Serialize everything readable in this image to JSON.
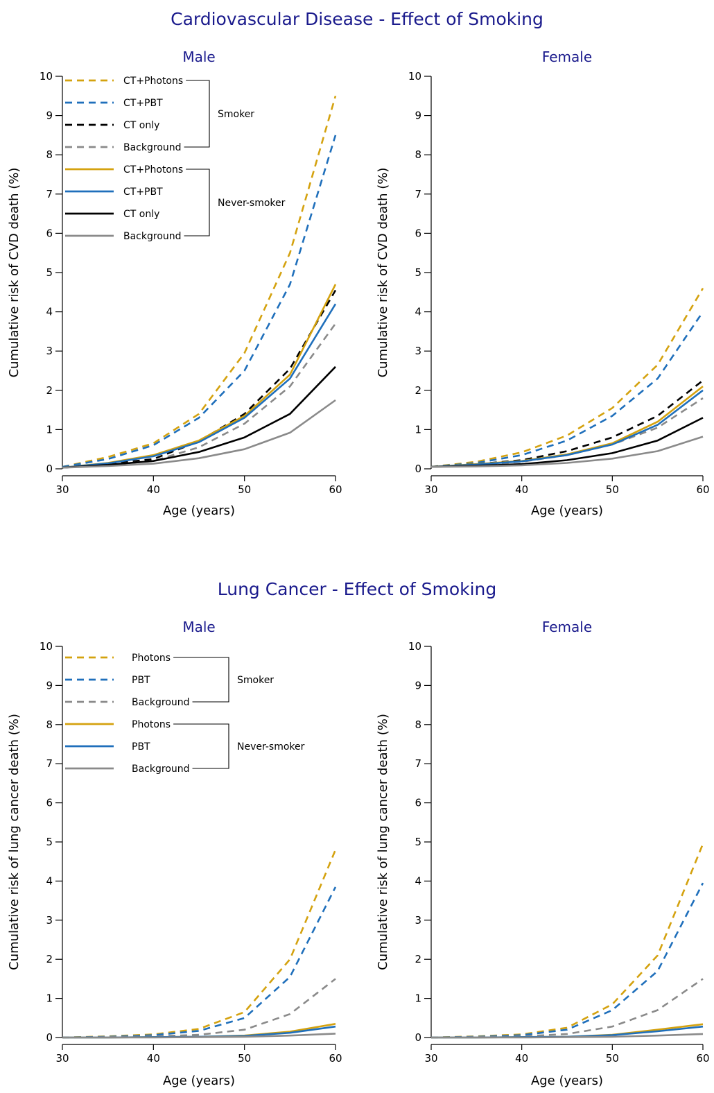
{
  "colors": {
    "photons": "#d4a20f",
    "pbt": "#1f6fbb",
    "ct_only": "#000000",
    "background": "#8a8a8a",
    "title": "#1a1a8c"
  },
  "sections": [
    {
      "title": "Cardiovascular Disease - Effect of Smoking"
    },
    {
      "title": "Lung Cancer - Effect of Smoking"
    }
  ],
  "legends": {
    "cvd": {
      "groups": [
        {
          "name": "Smoker",
          "items": [
            {
              "label": "CT+Photons",
              "color": "photons",
              "dash": true
            },
            {
              "label": "CT+PBT",
              "color": "pbt",
              "dash": true
            },
            {
              "label": "CT only",
              "color": "ct_only",
              "dash": true
            },
            {
              "label": "Background",
              "color": "background",
              "dash": true
            }
          ]
        },
        {
          "name": "Never-smoker",
          "items": [
            {
              "label": "CT+Photons",
              "color": "photons",
              "dash": false
            },
            {
              "label": "CT+PBT",
              "color": "pbt",
              "dash": false
            },
            {
              "label": "CT only",
              "color": "ct_only",
              "dash": false
            },
            {
              "label": "Background",
              "color": "background",
              "dash": false
            }
          ]
        }
      ]
    },
    "lung": {
      "groups": [
        {
          "name": "Smoker",
          "items": [
            {
              "label": "Photons",
              "color": "photons",
              "dash": true
            },
            {
              "label": "PBT",
              "color": "pbt",
              "dash": true
            },
            {
              "label": "Background",
              "color": "background",
              "dash": true
            }
          ]
        },
        {
          "name": "Never-smoker",
          "items": [
            {
              "label": "Photons",
              "color": "photons",
              "dash": false
            },
            {
              "label": "PBT",
              "color": "pbt",
              "dash": false
            },
            {
              "label": "Background",
              "color": "background",
              "dash": false
            }
          ]
        }
      ]
    }
  },
  "chart_data": [
    {
      "type": "line",
      "title": "Male",
      "section": 0,
      "legend": "cvd",
      "legend_placement": "top-left",
      "xlabel": "Age (years)",
      "ylabel": "Cumulative risk of CVD death (%)",
      "xlim": [
        30,
        60
      ],
      "ylim": [
        0,
        10
      ],
      "xticks": [
        30,
        40,
        50,
        60
      ],
      "yticks": [
        0,
        1,
        2,
        3,
        4,
        5,
        6,
        7,
        8,
        9,
        10
      ],
      "grid": false,
      "series": [
        {
          "legend_group": "Smoker",
          "legend_item": "CT+Photons",
          "color": "photons",
          "dash": true,
          "x": [
            30,
            35,
            40,
            45,
            50,
            55,
            60
          ],
          "y": [
            0.05,
            0.3,
            0.65,
            1.4,
            2.95,
            5.5,
            9.5
          ]
        },
        {
          "legend_group": "Smoker",
          "legend_item": "CT+PBT",
          "color": "pbt",
          "dash": true,
          "x": [
            30,
            35,
            40,
            45,
            50,
            55,
            60
          ],
          "y": [
            0.05,
            0.25,
            0.6,
            1.3,
            2.5,
            4.7,
            8.5
          ]
        },
        {
          "legend_group": "Smoker",
          "legend_item": "CT only",
          "color": "ct_only",
          "dash": true,
          "x": [
            30,
            35,
            40,
            45,
            50,
            55,
            60
          ],
          "y": [
            0.03,
            0.12,
            0.25,
            0.7,
            1.4,
            2.55,
            4.55
          ]
        },
        {
          "legend_group": "Smoker",
          "legend_item": "Background",
          "color": "background",
          "dash": true,
          "x": [
            30,
            35,
            40,
            45,
            50,
            55,
            60
          ],
          "y": [
            0.03,
            0.1,
            0.2,
            0.55,
            1.15,
            2.1,
            3.7
          ]
        },
        {
          "legend_group": "Never-smoker",
          "legend_item": "CT+Photons",
          "color": "photons",
          "dash": false,
          "x": [
            30,
            35,
            40,
            45,
            50,
            55,
            60
          ],
          "y": [
            0.03,
            0.15,
            0.35,
            0.72,
            1.35,
            2.4,
            4.7
          ]
        },
        {
          "legend_group": "Never-smoker",
          "legend_item": "CT+PBT",
          "color": "pbt",
          "dash": false,
          "x": [
            30,
            35,
            40,
            45,
            50,
            55,
            60
          ],
          "y": [
            0.03,
            0.14,
            0.32,
            0.68,
            1.3,
            2.3,
            4.2
          ]
        },
        {
          "legend_group": "Never-smoker",
          "legend_item": "CT only",
          "color": "ct_only",
          "dash": false,
          "x": [
            30,
            35,
            40,
            45,
            50,
            55,
            60
          ],
          "y": [
            0.03,
            0.1,
            0.2,
            0.43,
            0.8,
            1.4,
            2.6
          ]
        },
        {
          "legend_group": "Never-smoker",
          "legend_item": "Background",
          "color": "background",
          "dash": false,
          "x": [
            30,
            35,
            40,
            45,
            50,
            55,
            60
          ],
          "y": [
            0.03,
            0.07,
            0.13,
            0.27,
            0.5,
            0.92,
            1.75
          ]
        }
      ]
    },
    {
      "type": "line",
      "title": "Female",
      "section": 0,
      "legend": null,
      "xlabel": "Age (years)",
      "ylabel": "Cumulative risk of CVD death (%)",
      "xlim": [
        30,
        60
      ],
      "ylim": [
        0,
        10
      ],
      "xticks": [
        30,
        40,
        50,
        60
      ],
      "yticks": [
        0,
        1,
        2,
        3,
        4,
        5,
        6,
        7,
        8,
        9,
        10
      ],
      "grid": false,
      "series": [
        {
          "legend_group": "Smoker",
          "legend_item": "CT+Photons",
          "color": "photons",
          "dash": true,
          "x": [
            30,
            35,
            40,
            45,
            50,
            55,
            60
          ],
          "y": [
            0.05,
            0.18,
            0.42,
            0.85,
            1.55,
            2.65,
            4.6
          ]
        },
        {
          "legend_group": "Smoker",
          "legend_item": "CT+PBT",
          "color": "pbt",
          "dash": true,
          "x": [
            30,
            35,
            40,
            45,
            50,
            55,
            60
          ],
          "y": [
            0.05,
            0.15,
            0.35,
            0.72,
            1.35,
            2.3,
            4.0
          ]
        },
        {
          "legend_group": "Smoker",
          "legend_item": "CT only",
          "color": "ct_only",
          "dash": true,
          "x": [
            30,
            35,
            40,
            45,
            50,
            55,
            60
          ],
          "y": [
            0.05,
            0.12,
            0.22,
            0.45,
            0.8,
            1.35,
            2.25
          ]
        },
        {
          "legend_group": "Smoker",
          "legend_item": "Background",
          "color": "background",
          "dash": true,
          "x": [
            30,
            35,
            40,
            45,
            50,
            55,
            60
          ],
          "y": [
            0.05,
            0.1,
            0.18,
            0.35,
            0.62,
            1.05,
            1.8
          ]
        },
        {
          "legend_group": "Never-smoker",
          "legend_item": "CT+Photons",
          "color": "photons",
          "dash": false,
          "x": [
            30,
            35,
            40,
            45,
            50,
            55,
            60
          ],
          "y": [
            0.05,
            0.12,
            0.2,
            0.37,
            0.65,
            1.2,
            2.1
          ]
        },
        {
          "legend_group": "Never-smoker",
          "legend_item": "CT+PBT",
          "color": "pbt",
          "dash": false,
          "x": [
            30,
            35,
            40,
            45,
            50,
            55,
            60
          ],
          "y": [
            0.05,
            0.11,
            0.19,
            0.35,
            0.62,
            1.12,
            2.0
          ]
        },
        {
          "legend_group": "Never-smoker",
          "legend_item": "CT only",
          "color": "ct_only",
          "dash": false,
          "x": [
            30,
            35,
            40,
            45,
            50,
            55,
            60
          ],
          "y": [
            0.05,
            0.08,
            0.12,
            0.22,
            0.4,
            0.72,
            1.3
          ]
        },
        {
          "legend_group": "Never-smoker",
          "legend_item": "Background",
          "color": "background",
          "dash": false,
          "x": [
            30,
            35,
            40,
            45,
            50,
            55,
            60
          ],
          "y": [
            0.05,
            0.06,
            0.09,
            0.15,
            0.26,
            0.45,
            0.82
          ]
        }
      ]
    },
    {
      "type": "line",
      "title": "Male",
      "section": 1,
      "legend": "lung",
      "legend_placement": "top-left",
      "xlabel": "Age (years)",
      "ylabel": "Cumulative risk of lung cancer death (%)",
      "xlim": [
        30,
        60
      ],
      "ylim": [
        0,
        10
      ],
      "xticks": [
        30,
        40,
        50,
        60
      ],
      "yticks": [
        0,
        1,
        2,
        3,
        4,
        5,
        6,
        7,
        8,
        9,
        10
      ],
      "grid": false,
      "series": [
        {
          "legend_group": "Smoker",
          "legend_item": "Photons",
          "color": "photons",
          "dash": true,
          "x": [
            30,
            35,
            40,
            45,
            50,
            55,
            60
          ],
          "y": [
            0.0,
            0.03,
            0.08,
            0.22,
            0.65,
            2.0,
            4.8
          ]
        },
        {
          "legend_group": "Smoker",
          "legend_item": "PBT",
          "color": "pbt",
          "dash": true,
          "x": [
            30,
            35,
            40,
            45,
            50,
            55,
            60
          ],
          "y": [
            0.0,
            0.02,
            0.06,
            0.17,
            0.5,
            1.55,
            3.85
          ]
        },
        {
          "legend_group": "Smoker",
          "legend_item": "Background",
          "color": "background",
          "dash": true,
          "x": [
            30,
            35,
            40,
            45,
            50,
            55,
            60
          ],
          "y": [
            0.0,
            0.01,
            0.03,
            0.07,
            0.2,
            0.6,
            1.5
          ]
        },
        {
          "legend_group": "Never-smoker",
          "legend_item": "Photons",
          "color": "photons",
          "dash": false,
          "x": [
            30,
            35,
            40,
            45,
            50,
            55,
            60
          ],
          "y": [
            0.0,
            0.0,
            0.01,
            0.02,
            0.05,
            0.15,
            0.35
          ]
        },
        {
          "legend_group": "Never-smoker",
          "legend_item": "PBT",
          "color": "pbt",
          "dash": false,
          "x": [
            30,
            35,
            40,
            45,
            50,
            55,
            60
          ],
          "y": [
            0.0,
            0.0,
            0.01,
            0.02,
            0.04,
            0.12,
            0.28
          ]
        },
        {
          "legend_group": "Never-smoker",
          "legend_item": "Background",
          "color": "background",
          "dash": false,
          "x": [
            30,
            35,
            40,
            45,
            50,
            55,
            60
          ],
          "y": [
            0.0,
            0.0,
            0.0,
            0.01,
            0.02,
            0.05,
            0.1
          ]
        }
      ]
    },
    {
      "type": "line",
      "title": "Female",
      "section": 1,
      "legend": null,
      "xlabel": "Age (years)",
      "ylabel": "Cumulative risk of lung cancer death (%)",
      "xlim": [
        30,
        60
      ],
      "ylim": [
        0,
        10
      ],
      "xticks": [
        30,
        40,
        50,
        60
      ],
      "yticks": [
        0,
        1,
        2,
        3,
        4,
        5,
        6,
        7,
        8,
        9,
        10
      ],
      "grid": false,
      "series": [
        {
          "legend_group": "Smoker",
          "legend_item": "Photons",
          "color": "photons",
          "dash": true,
          "x": [
            30,
            35,
            40,
            45,
            50,
            55,
            60
          ],
          "y": [
            0.0,
            0.03,
            0.08,
            0.25,
            0.85,
            2.1,
            4.95
          ]
        },
        {
          "legend_group": "Smoker",
          "legend_item": "PBT",
          "color": "pbt",
          "dash": true,
          "x": [
            30,
            35,
            40,
            45,
            50,
            55,
            60
          ],
          "y": [
            0.0,
            0.02,
            0.06,
            0.2,
            0.7,
            1.7,
            3.95
          ]
        },
        {
          "legend_group": "Smoker",
          "legend_item": "Background",
          "color": "background",
          "dash": true,
          "x": [
            30,
            35,
            40,
            45,
            50,
            55,
            60
          ],
          "y": [
            0.0,
            0.01,
            0.03,
            0.09,
            0.28,
            0.7,
            1.5
          ]
        },
        {
          "legend_group": "Never-smoker",
          "legend_item": "Photons",
          "color": "photons",
          "dash": false,
          "x": [
            30,
            35,
            40,
            45,
            50,
            55,
            60
          ],
          "y": [
            0.0,
            0.0,
            0.01,
            0.02,
            0.07,
            0.2,
            0.34
          ]
        },
        {
          "legend_group": "Never-smoker",
          "legend_item": "PBT",
          "color": "pbt",
          "dash": false,
          "x": [
            30,
            35,
            40,
            45,
            50,
            55,
            60
          ],
          "y": [
            0.0,
            0.0,
            0.01,
            0.02,
            0.06,
            0.16,
            0.28
          ]
        },
        {
          "legend_group": "Never-smoker",
          "legend_item": "Background",
          "color": "background",
          "dash": false,
          "x": [
            30,
            35,
            40,
            45,
            50,
            55,
            60
          ],
          "y": [
            0.0,
            0.0,
            0.0,
            0.01,
            0.02,
            0.05,
            0.09
          ]
        }
      ]
    }
  ]
}
